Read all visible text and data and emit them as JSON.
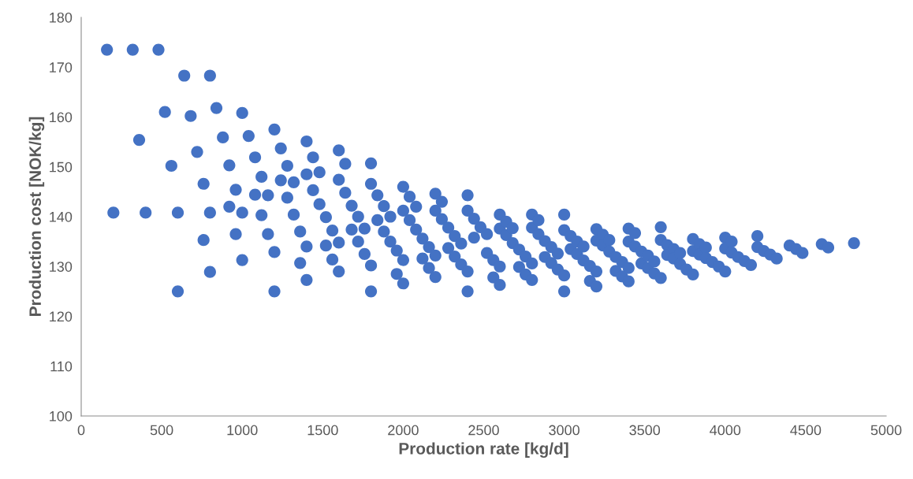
{
  "chart_data": {
    "type": "scatter",
    "xlabel": "Production rate [kg/d]",
    "ylabel": "Production cost [NOK/kg]",
    "xlim": [
      0,
      5000
    ],
    "xticks": [
      0,
      500,
      1000,
      1500,
      2000,
      2500,
      3000,
      3500,
      4000,
      4500,
      5000
    ],
    "ylim": [
      100,
      180
    ],
    "yticks": [
      100,
      110,
      120,
      130,
      140,
      150,
      160,
      170,
      180
    ],
    "grid": false,
    "legend": false,
    "marker": "circle",
    "series": [
      {
        "color": "#4472c4",
        "x": [
          160,
          320,
          480,
          640,
          800,
          200,
          360,
          400,
          520,
          560,
          600,
          600,
          680,
          720,
          760,
          760,
          800,
          800,
          840,
          880,
          920,
          920,
          960,
          960,
          1000,
          1000,
          1000,
          1040,
          1080,
          1080,
          1120,
          1120,
          1160,
          1160,
          1200,
          1200,
          1200,
          1240,
          1240,
          1280,
          1280,
          1320,
          1320,
          1360,
          1360,
          1400,
          1400,
          1400,
          1400,
          1440,
          1440,
          1480,
          1480,
          1520,
          1520,
          1560,
          1560,
          1600,
          1600,
          1600,
          1600,
          1640,
          1640,
          1680,
          1680,
          1720,
          1720,
          1760,
          1760,
          1800,
          1800,
          1800,
          1800,
          1840,
          1840,
          1880,
          1880,
          1920,
          1920,
          1960,
          1960,
          2000,
          2000,
          2000,
          2000,
          2040,
          2040,
          2080,
          2080,
          2120,
          2120,
          2160,
          2160,
          2200,
          2200,
          2200,
          2200,
          2240,
          2240,
          2280,
          2280,
          2320,
          2320,
          2360,
          2360,
          2400,
          2400,
          2400,
          2400,
          2440,
          2440,
          2480,
          2520,
          2520,
          2560,
          2560,
          2600,
          2600,
          2600,
          2600,
          2640,
          2640,
          2680,
          2680,
          2720,
          2720,
          2760,
          2760,
          2800,
          2800,
          2800,
          2800,
          2840,
          2840,
          2880,
          2880,
          2920,
          2920,
          2960,
          2960,
          3000,
          3000,
          3000,
          3000,
          3040,
          3040,
          3080,
          3080,
          3120,
          3120,
          3160,
          3160,
          3200,
          3200,
          3200,
          3200,
          3240,
          3240,
          3280,
          3280,
          3320,
          3320,
          3360,
          3360,
          3400,
          3400,
          3400,
          3400,
          3440,
          3440,
          3480,
          3480,
          3520,
          3520,
          3560,
          3560,
          3600,
          3600,
          3600,
          3640,
          3640,
          3680,
          3680,
          3720,
          3720,
          3760,
          3800,
          3800,
          3800,
          3840,
          3840,
          3880,
          3880,
          3920,
          3960,
          4000,
          4000,
          4000,
          4040,
          4040,
          4080,
          4120,
          4160,
          4200,
          4200,
          4240,
          4280,
          4320,
          4400,
          4440,
          4480,
          4600,
          4640,
          4800
        ],
        "values": [
          173.5,
          173.5,
          173.5,
          168.3,
          168.3,
          140.8,
          155.4,
          140.8,
          161,
          150.2,
          140.8,
          125,
          160.2,
          153,
          146.6,
          135.3,
          140.8,
          128.9,
          161.8,
          155.9,
          150.3,
          142,
          145.4,
          136.5,
          160.8,
          140.8,
          131.3,
          156.2,
          151.9,
          144.4,
          148,
          140.3,
          144.3,
          136.5,
          157.5,
          132.9,
          125,
          153.7,
          147.3,
          150.2,
          143.8,
          146.9,
          140.4,
          137,
          130.7,
          155.1,
          148.5,
          134,
          127.3,
          151.9,
          145.3,
          148.9,
          142.5,
          139.9,
          134.2,
          137.2,
          131.4,
          153.3,
          147.4,
          134.8,
          129,
          150.6,
          144.8,
          142.2,
          137.4,
          140,
          135,
          137.6,
          132.5,
          150.7,
          146.6,
          130.2,
          125,
          144.3,
          139.3,
          142.1,
          137,
          140,
          135,
          133.2,
          128.5,
          146,
          141.2,
          131.3,
          126.6,
          144,
          139.3,
          142,
          137.4,
          135.6,
          131.6,
          133.9,
          129.7,
          144.6,
          141.2,
          132.2,
          127.9,
          143,
          139.5,
          137.8,
          133.7,
          136.1,
          132,
          134.6,
          130.4,
          144.3,
          141.2,
          129,
          125,
          139.6,
          135.8,
          137.9,
          136.5,
          132.7,
          131.3,
          127.8,
          140.4,
          137.6,
          130,
          126.3,
          139,
          136.3,
          137.7,
          134.7,
          133.4,
          129.9,
          132,
          128.4,
          140.4,
          137.8,
          130.6,
          127.3,
          139.3,
          136.5,
          135.1,
          131.9,
          133.9,
          130.7,
          132.6,
          129.4,
          140.4,
          137.3,
          128.2,
          125,
          136.1,
          133.5,
          135,
          132.5,
          134,
          131.2,
          130.1,
          127.1,
          137.5,
          135.2,
          129,
          126,
          136.4,
          134.2,
          135.3,
          133,
          131.9,
          129.1,
          130.9,
          128,
          137.6,
          135,
          129.7,
          127,
          136.7,
          134,
          133,
          130.6,
          132.2,
          129.7,
          131,
          128.6,
          137.9,
          135.3,
          127.7,
          134.3,
          132.3,
          133.5,
          131.6,
          132.7,
          130.5,
          129.4,
          135.5,
          133.1,
          128.4,
          134.5,
          132.4,
          133.8,
          131.7,
          130.9,
          130,
          135.8,
          133.6,
          129,
          135,
          132.8,
          131.9,
          131.1,
          130.3,
          136.1,
          133.9,
          133.1,
          132.4,
          131.6,
          134.2,
          133.5,
          132.7,
          134.5,
          133.8,
          134.7
        ]
      }
    ]
  }
}
